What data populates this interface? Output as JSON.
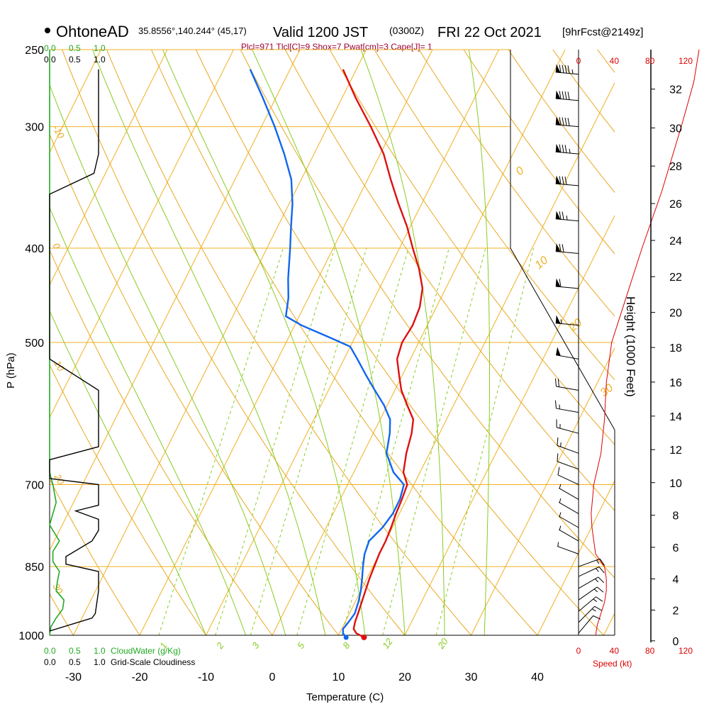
{
  "header": {
    "station": "OhtoneAD",
    "coords": "35.8556°,140.244° (45,17)",
    "valid_prefix": "Valid 1200 JST",
    "valid_utc": "(0300Z)",
    "valid_date": "FRI 22 Oct 2021",
    "forecast": "[9hrFcst@2149z]",
    "indices": "Plcl=971 Tlcl[C]=9 Shox=7 Pwat[cm]=3 Cape[J]= 1"
  },
  "colors": {
    "temperature": "#dd1111",
    "dewpoint": "#1166ee",
    "isotherm": "#f0b020",
    "dry_adiabat": "#e8a820",
    "moist_adiabat": "#88cc22",
    "mixing_ratio": "#88cc22",
    "cloud_water": "#22aa22",
    "wind_speed": "#dd0000"
  },
  "chart_data": {
    "type": "skew-t",
    "title": "OhtoneAD 35.8556°,140.244° (45,17) Valid 1200 JST (0300Z) FRI 22 Oct 2021 [9hrFcst@2149z]",
    "xlabel": "Temperature (C)",
    "ylabel": "P (hPa)",
    "y2label": "Height (1000 Feet)",
    "xlim": [
      -34,
      36
    ],
    "ylim": [
      1000,
      250
    ],
    "x_ticks": [
      -30,
      -20,
      -10,
      0,
      10,
      20,
      30,
      40
    ],
    "y_ticks": [
      250,
      300,
      400,
      500,
      700,
      850,
      1000
    ],
    "height_ticks": [
      0,
      2,
      4,
      6,
      8,
      10,
      12,
      14,
      16,
      18,
      20,
      22,
      24,
      26,
      28,
      30,
      32
    ],
    "temperature_profile": [
      {
        "p": 1005,
        "t": 14.0
      },
      {
        "p": 995,
        "t": 12.5
      },
      {
        "p": 985,
        "t": 11.8
      },
      {
        "p": 970,
        "t": 11.5
      },
      {
        "p": 950,
        "t": 11.3
      },
      {
        "p": 925,
        "t": 11.0
      },
      {
        "p": 900,
        "t": 10.7
      },
      {
        "p": 875,
        "t": 10.4
      },
      {
        "p": 850,
        "t": 10.2
      },
      {
        "p": 825,
        "t": 10.0
      },
      {
        "p": 800,
        "t": 10.0
      },
      {
        "p": 775,
        "t": 9.8
      },
      {
        "p": 750,
        "t": 9.5
      },
      {
        "p": 725,
        "t": 9.3
      },
      {
        "p": 700,
        "t": 9.0
      },
      {
        "p": 680,
        "t": 7.5
      },
      {
        "p": 650,
        "t": 6.5
      },
      {
        "p": 620,
        "t": 5.8
      },
      {
        "p": 600,
        "t": 5.0
      },
      {
        "p": 580,
        "t": 3.0
      },
      {
        "p": 560,
        "t": 1.0
      },
      {
        "p": 540,
        "t": -0.5
      },
      {
        "p": 520,
        "t": -2.0
      },
      {
        "p": 500,
        "t": -2.5
      },
      {
        "p": 480,
        "t": -2.2
      },
      {
        "p": 460,
        "t": -2.5
      },
      {
        "p": 440,
        "t": -3.5
      },
      {
        "p": 420,
        "t": -5.5
      },
      {
        "p": 400,
        "t": -8.0
      },
      {
        "p": 380,
        "t": -10.5
      },
      {
        "p": 360,
        "t": -13.5
      },
      {
        "p": 340,
        "t": -16.5
      },
      {
        "p": 320,
        "t": -19.5
      },
      {
        "p": 300,
        "t": -23.5
      },
      {
        "p": 280,
        "t": -28.0
      },
      {
        "p": 262,
        "t": -32.0
      }
    ],
    "dewpoint_profile": [
      {
        "p": 1005,
        "t": 11.3
      },
      {
        "p": 995,
        "t": 10.5
      },
      {
        "p": 985,
        "t": 10.2
      },
      {
        "p": 970,
        "t": 10.5
      },
      {
        "p": 950,
        "t": 10.8
      },
      {
        "p": 925,
        "t": 10.5
      },
      {
        "p": 900,
        "t": 10.0
      },
      {
        "p": 875,
        "t": 9.3
      },
      {
        "p": 850,
        "t": 8.5
      },
      {
        "p": 825,
        "t": 7.8
      },
      {
        "p": 800,
        "t": 7.5
      },
      {
        "p": 775,
        "t": 8.5
      },
      {
        "p": 750,
        "t": 9.0
      },
      {
        "p": 725,
        "t": 9.0
      },
      {
        "p": 700,
        "t": 8.5
      },
      {
        "p": 680,
        "t": 6.0
      },
      {
        "p": 650,
        "t": 3.5
      },
      {
        "p": 620,
        "t": 2.5
      },
      {
        "p": 600,
        "t": 1.5
      },
      {
        "p": 580,
        "t": -0.5
      },
      {
        "p": 560,
        "t": -3.0
      },
      {
        "p": 540,
        "t": -5.5
      },
      {
        "p": 520,
        "t": -8.0
      },
      {
        "p": 505,
        "t": -10.0
      },
      {
        "p": 495,
        "t": -13.5
      },
      {
        "p": 480,
        "t": -19.0
      },
      {
        "p": 470,
        "t": -22.0
      },
      {
        "p": 450,
        "t": -23.0
      },
      {
        "p": 430,
        "t": -24.5
      },
      {
        "p": 400,
        "t": -26.5
      },
      {
        "p": 380,
        "t": -28.0
      },
      {
        "p": 360,
        "t": -29.5
      },
      {
        "p": 340,
        "t": -31.5
      },
      {
        "p": 320,
        "t": -34.5
      },
      {
        "p": 300,
        "t": -38.0
      },
      {
        "p": 280,
        "t": -42.0
      },
      {
        "p": 262,
        "t": -46.0
      }
    ],
    "surface_temperature": 14.0,
    "surface_dewpoint": 11.3,
    "isotherm_labels": [
      0,
      10,
      20,
      30
    ],
    "dry_adiabat_labels": [
      -10,
      0,
      10,
      20,
      30
    ],
    "mixing_ratio_labels": [
      "1",
      "2",
      "3",
      "5",
      "8",
      "12",
      "20"
    ],
    "cloud_water_scale": [
      "0.0",
      "0.5",
      "1.0"
    ],
    "cloudiness_scale": [
      "0.0",
      "0.5",
      "1.0"
    ],
    "cloud_water_label": "CloudWater (g/Kg)",
    "cloudiness_label": "Grid-Scale Cloudiness",
    "cloud_water_profile": [
      {
        "p": 1000,
        "v": 0.0
      },
      {
        "p": 980,
        "v": 0.02
      },
      {
        "p": 960,
        "v": 0.1
      },
      {
        "p": 940,
        "v": 0.2
      },
      {
        "p": 920,
        "v": 0.22
      },
      {
        "p": 900,
        "v": 0.1
      },
      {
        "p": 880,
        "v": 0.12
      },
      {
        "p": 860,
        "v": 0.15
      },
      {
        "p": 840,
        "v": 0.05
      },
      {
        "p": 820,
        "v": 0.05
      },
      {
        "p": 800,
        "v": 0.15
      },
      {
        "p": 780,
        "v": 0.05
      },
      {
        "p": 770,
        "v": 0.0
      },
      {
        "p": 750,
        "v": 0.05
      },
      {
        "p": 730,
        "v": 0.1
      },
      {
        "p": 700,
        "v": 0.05
      },
      {
        "p": 680,
        "v": 0.0
      },
      {
        "p": 250,
        "v": 0.0
      }
    ],
    "cloudiness_profile": [
      {
        "p": 990,
        "v": 0.0
      },
      {
        "p": 960,
        "v": 0.65
      },
      {
        "p": 950,
        "v": 0.7
      },
      {
        "p": 900,
        "v": 0.75
      },
      {
        "p": 860,
        "v": 0.75
      },
      {
        "p": 845,
        "v": 0.25
      },
      {
        "p": 830,
        "v": 0.25
      },
      {
        "p": 800,
        "v": 0.65
      },
      {
        "p": 780,
        "v": 0.75
      },
      {
        "p": 760,
        "v": 0.75
      },
      {
        "p": 745,
        "v": 0.4
      },
      {
        "p": 735,
        "v": 0.75
      },
      {
        "p": 700,
        "v": 0.75
      },
      {
        "p": 690,
        "v": 0.0
      },
      {
        "p": 660,
        "v": 0.0
      },
      {
        "p": 640,
        "v": 0.75
      },
      {
        "p": 560,
        "v": 0.75
      },
      {
        "p": 520,
        "v": 0.0
      },
      {
        "p": 500,
        "v": 0.0
      },
      {
        "p": 352,
        "v": 0.0
      },
      {
        "p": 335,
        "v": 0.68
      },
      {
        "p": 320,
        "v": 0.75
      },
      {
        "p": 300,
        "v": 0.75
      },
      {
        "p": 262,
        "v": 0.75
      }
    ],
    "wind_speed_axis_label": "Speed (kt)",
    "wind_speed_ticks": [
      0,
      40,
      80,
      120
    ],
    "wind_speed_profile": [
      {
        "p": 1000,
        "s": 8
      },
      {
        "p": 975,
        "s": 10
      },
      {
        "p": 950,
        "s": 14
      },
      {
        "p": 925,
        "s": 18
      },
      {
        "p": 900,
        "s": 20
      },
      {
        "p": 875,
        "s": 20
      },
      {
        "p": 850,
        "s": 18
      },
      {
        "p": 825,
        "s": 8
      },
      {
        "p": 800,
        "s": 6
      },
      {
        "p": 775,
        "s": 4
      },
      {
        "p": 750,
        "s": 3
      },
      {
        "p": 700,
        "s": 6
      },
      {
        "p": 650,
        "s": 14
      },
      {
        "p": 600,
        "s": 18
      },
      {
        "p": 550,
        "s": 20
      },
      {
        "p": 500,
        "s": 26
      },
      {
        "p": 450,
        "s": 42
      },
      {
        "p": 400,
        "s": 60
      },
      {
        "p": 350,
        "s": 82
      },
      {
        "p": 300,
        "s": 104
      },
      {
        "p": 270,
        "s": 118
      },
      {
        "p": 250,
        "s": 124
      }
    ],
    "wind_barbs": [
      {
        "p": 995,
        "dir": 40,
        "spd": 12
      },
      {
        "p": 970,
        "dir": 45,
        "spd": 15
      },
      {
        "p": 945,
        "dir": 50,
        "spd": 17
      },
      {
        "p": 920,
        "dir": 55,
        "spd": 18
      },
      {
        "p": 895,
        "dir": 60,
        "spd": 19
      },
      {
        "p": 870,
        "dir": 65,
        "spd": 18
      },
      {
        "p": 850,
        "dir": 70,
        "spd": 15
      },
      {
        "p": 825,
        "dir": 290,
        "spd": 5
      },
      {
        "p": 800,
        "dir": 300,
        "spd": 5
      },
      {
        "p": 775,
        "dir": 300,
        "spd": 5
      },
      {
        "p": 750,
        "dir": 300,
        "spd": 5
      },
      {
        "p": 725,
        "dir": 300,
        "spd": 5
      },
      {
        "p": 700,
        "dir": 295,
        "spd": 10
      },
      {
        "p": 675,
        "dir": 290,
        "spd": 10
      },
      {
        "p": 650,
        "dir": 290,
        "spd": 15
      },
      {
        "p": 620,
        "dir": 285,
        "spd": 15
      },
      {
        "p": 590,
        "dir": 280,
        "spd": 15
      },
      {
        "p": 560,
        "dir": 280,
        "spd": 20
      },
      {
        "p": 520,
        "dir": 280,
        "spd": 50
      },
      {
        "p": 480,
        "dir": 275,
        "spd": 55
      },
      {
        "p": 440,
        "dir": 275,
        "spd": 60
      },
      {
        "p": 405,
        "dir": 275,
        "spd": 70
      },
      {
        "p": 375,
        "dir": 275,
        "spd": 75
      },
      {
        "p": 345,
        "dir": 275,
        "spd": 80
      },
      {
        "p": 320,
        "dir": 275,
        "spd": 85
      },
      {
        "p": 300,
        "dir": 275,
        "spd": 90
      },
      {
        "p": 282,
        "dir": 275,
        "spd": 90
      },
      {
        "p": 265,
        "dir": 275,
        "spd": 95
      }
    ]
  }
}
